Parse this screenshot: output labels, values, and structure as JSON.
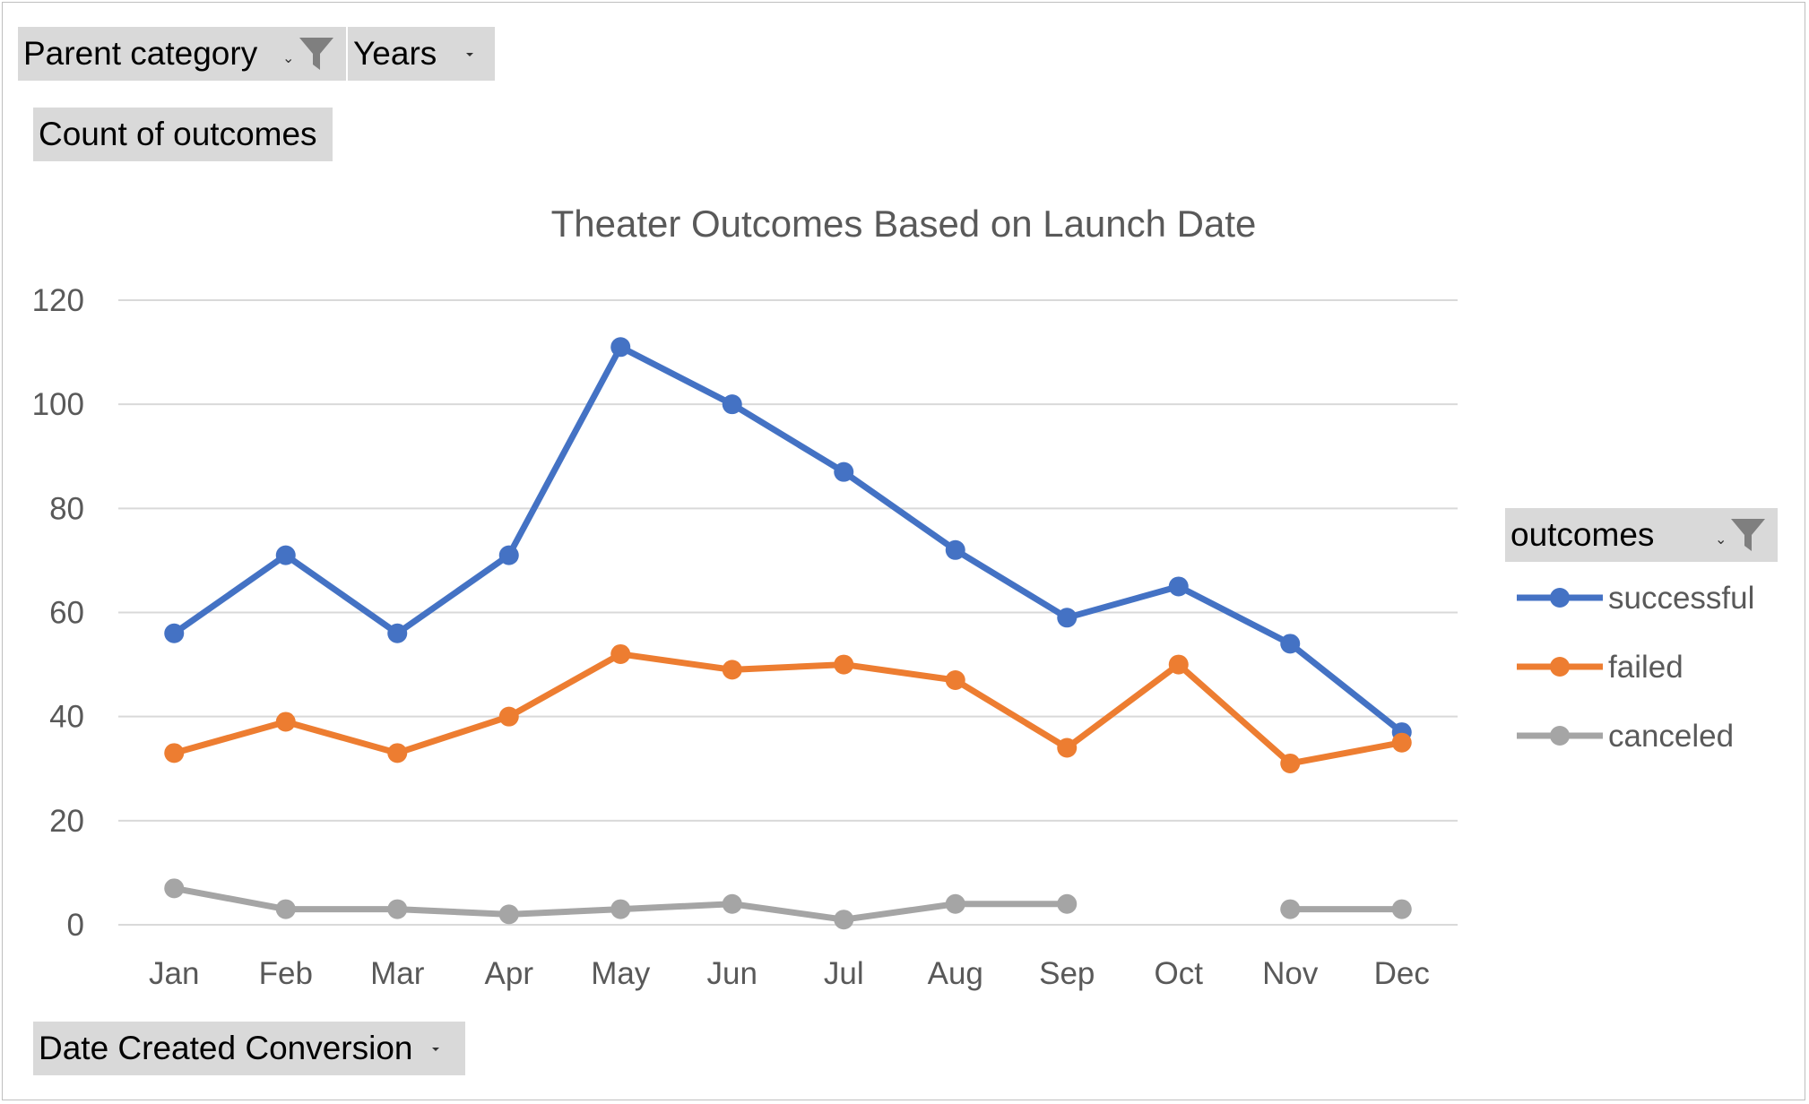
{
  "pivot": {
    "filter_fields": [
      {
        "label": "Parent category",
        "icon": "filter-icon"
      },
      {
        "label": "Years",
        "icon": "dropdown-arrow-icon"
      }
    ],
    "value_field": {
      "label": "Count of outcomes"
    },
    "axis_field": {
      "label": "Date Created Conversion",
      "icon": "dropdown-arrow-icon"
    },
    "legend_field": {
      "label": "outcomes",
      "icon": "filter-icon"
    }
  },
  "chart_data": {
    "type": "line",
    "title": "Theater Outcomes Based on Launch Date",
    "categories": [
      "Jan",
      "Feb",
      "Mar",
      "Apr",
      "May",
      "Jun",
      "Jul",
      "Aug",
      "Sep",
      "Oct",
      "Nov",
      "Dec"
    ],
    "series": [
      {
        "name": "successful",
        "color": "#4472C4",
        "values": [
          56,
          71,
          56,
          71,
          111,
          100,
          87,
          72,
          59,
          65,
          54,
          37
        ]
      },
      {
        "name": "failed",
        "color": "#ED7D31",
        "values": [
          33,
          39,
          33,
          40,
          52,
          49,
          50,
          47,
          34,
          50,
          31,
          35
        ]
      },
      {
        "name": "canceled",
        "color": "#A5A5A5",
        "values": [
          7,
          3,
          3,
          2,
          3,
          4,
          1,
          4,
          4,
          null,
          3,
          3
        ]
      }
    ],
    "ylim": [
      0,
      120
    ],
    "yticks": [
      0,
      20,
      40,
      60,
      80,
      100,
      120
    ],
    "grid": true,
    "legend_position": "right"
  }
}
